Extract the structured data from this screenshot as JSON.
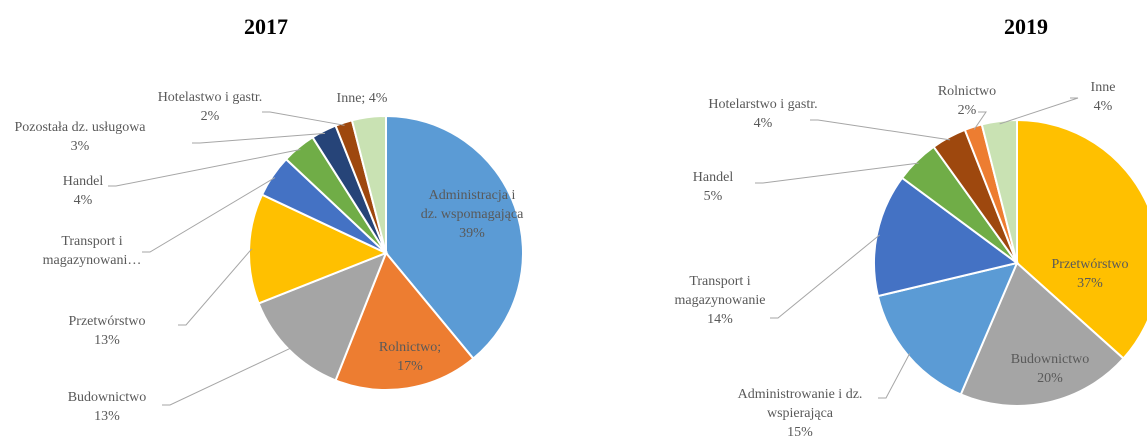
{
  "chart_data": [
    {
      "type": "pie",
      "title": "2017",
      "categories": [
        "Administracja i dz. wspomagająca",
        "Rolnictwo;",
        "Budownictwo",
        "Przetwórstwo",
        "Transport i magazynowani…",
        "Handel",
        "Pozostała dz. usługowa",
        "Hotelastwo i gastr.",
        "Inne;"
      ],
      "values": [
        39,
        17,
        13,
        13,
        5,
        4,
        3,
        2,
        4
      ],
      "value_labels": [
        "39%",
        "17%",
        "13%",
        "13%",
        null,
        "4%",
        "3%",
        "2%",
        "4%"
      ],
      "colors": [
        "#5b9bd5",
        "#ed7d31",
        "#a5a5a5",
        "#ffc000",
        "#4472c4",
        "#70ad47",
        "#264478",
        "#9e480e",
        "#c9e2b3"
      ]
    },
    {
      "type": "pie",
      "title": "2019",
      "categories": [
        "Przetwórstwo",
        "Budownictwo",
        "Administrowanie i dz. wspierająca",
        "Transport i magazynowanie",
        "Handel",
        "Hotelarstwo i gastr.",
        "Rolnictwo",
        "Inne"
      ],
      "values": [
        37,
        20,
        15,
        14,
        5,
        4,
        2,
        4
      ],
      "value_labels": [
        "37%",
        "20%",
        "15%",
        "14%",
        "5%",
        "4%",
        "2%",
        "4%"
      ],
      "colors": [
        "#ffc000",
        "#a5a5a5",
        "#5b9bd5",
        "#4472c4",
        "#70ad47",
        "#9e480e",
        "#ed7d31",
        "#c9e2b3"
      ]
    }
  ]
}
